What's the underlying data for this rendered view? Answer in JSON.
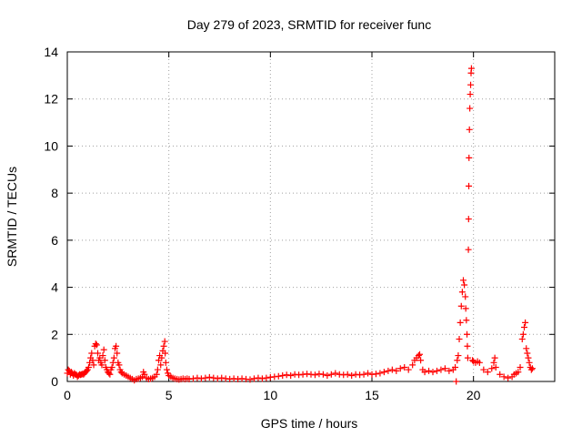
{
  "chart_data": {
    "type": "scatter",
    "title": "Day 279 of 2023, SRMTID for receiver func",
    "xlabel": "GPS time / hours",
    "ylabel": "SRMTID / TECUs",
    "xlim": [
      0,
      24
    ],
    "ylim": [
      0,
      14
    ],
    "x_ticks": [
      0,
      5,
      10,
      15,
      20
    ],
    "y_ticks": [
      0,
      2,
      4,
      6,
      8,
      10,
      12,
      14
    ],
    "grid": true,
    "marker": "+",
    "marker_color": "#ff0000",
    "series": [
      {
        "points": [
          [
            0.0,
            0.35
          ],
          [
            0.05,
            0.5
          ],
          [
            0.1,
            0.45
          ],
          [
            0.15,
            0.3
          ],
          [
            0.2,
            0.4
          ],
          [
            0.25,
            0.35
          ],
          [
            0.3,
            0.25
          ],
          [
            0.35,
            0.35
          ],
          [
            0.4,
            0.3
          ],
          [
            0.45,
            0.28
          ],
          [
            0.5,
            0.2
          ],
          [
            0.55,
            0.25
          ],
          [
            0.6,
            0.3
          ],
          [
            0.65,
            0.28
          ],
          [
            0.7,
            0.3
          ],
          [
            0.75,
            0.32
          ],
          [
            0.8,
            0.3
          ],
          [
            0.85,
            0.35
          ],
          [
            0.9,
            0.4
          ],
          [
            0.95,
            0.45
          ],
          [
            1.0,
            0.5
          ],
          [
            1.05,
            0.6
          ],
          [
            1.1,
            0.8
          ],
          [
            1.15,
            1.0
          ],
          [
            1.2,
            1.2
          ],
          [
            1.25,
            0.9
          ],
          [
            1.3,
            0.7
          ],
          [
            1.35,
            1.5
          ],
          [
            1.4,
            1.6
          ],
          [
            1.45,
            1.55
          ],
          [
            1.5,
            1.2
          ],
          [
            1.55,
            0.9
          ],
          [
            1.6,
            1.0
          ],
          [
            1.65,
            0.8
          ],
          [
            1.7,
            0.7
          ],
          [
            1.75,
            1.1
          ],
          [
            1.8,
            1.35
          ],
          [
            1.85,
            0.9
          ],
          [
            1.9,
            0.6
          ],
          [
            1.95,
            0.5
          ],
          [
            2.0,
            0.4
          ],
          [
            2.05,
            0.35
          ],
          [
            2.1,
            0.3
          ],
          [
            2.15,
            0.5
          ],
          [
            2.2,
            0.6
          ],
          [
            2.25,
            0.8
          ],
          [
            2.3,
            1.0
          ],
          [
            2.35,
            1.4
          ],
          [
            2.4,
            1.5
          ],
          [
            2.45,
            1.2
          ],
          [
            2.5,
            0.8
          ],
          [
            2.55,
            0.7
          ],
          [
            2.6,
            0.5
          ],
          [
            2.65,
            0.4
          ],
          [
            2.7,
            0.35
          ],
          [
            2.8,
            0.3
          ],
          [
            2.9,
            0.25
          ],
          [
            3.0,
            0.2
          ],
          [
            3.1,
            0.15
          ],
          [
            3.2,
            0.1
          ],
          [
            3.3,
            0.05
          ],
          [
            3.4,
            0.1
          ],
          [
            3.5,
            0.12
          ],
          [
            3.6,
            0.15
          ],
          [
            3.7,
            0.2
          ],
          [
            3.75,
            0.4
          ],
          [
            3.8,
            0.3
          ],
          [
            3.9,
            0.15
          ],
          [
            4.0,
            0.1
          ],
          [
            4.1,
            0.12
          ],
          [
            4.2,
            0.15
          ],
          [
            4.3,
            0.2
          ],
          [
            4.4,
            0.3
          ],
          [
            4.45,
            0.5
          ],
          [
            4.5,
            0.9
          ],
          [
            4.55,
            1.1
          ],
          [
            4.6,
            0.7
          ],
          [
            4.65,
            1.0
          ],
          [
            4.7,
            1.3
          ],
          [
            4.75,
            1.5
          ],
          [
            4.8,
            1.7
          ],
          [
            4.82,
            1.2
          ],
          [
            4.85,
            0.8
          ],
          [
            4.9,
            0.5
          ],
          [
            4.95,
            0.35
          ],
          [
            5.0,
            0.25
          ],
          [
            5.1,
            0.2
          ],
          [
            5.2,
            0.15
          ],
          [
            5.3,
            0.12
          ],
          [
            5.4,
            0.1
          ],
          [
            5.5,
            0.08
          ],
          [
            5.6,
            0.1
          ],
          [
            5.7,
            0.12
          ],
          [
            5.8,
            0.1
          ],
          [
            5.9,
            0.12
          ],
          [
            6.0,
            0.1
          ],
          [
            6.2,
            0.12
          ],
          [
            6.4,
            0.15
          ],
          [
            6.6,
            0.12
          ],
          [
            6.8,
            0.15
          ],
          [
            7.0,
            0.18
          ],
          [
            7.2,
            0.15
          ],
          [
            7.4,
            0.12
          ],
          [
            7.6,
            0.15
          ],
          [
            7.8,
            0.12
          ],
          [
            8.0,
            0.1
          ],
          [
            8.2,
            0.12
          ],
          [
            8.4,
            0.1
          ],
          [
            8.6,
            0.12
          ],
          [
            8.8,
            0.1
          ],
          [
            9.0,
            0.08
          ],
          [
            9.2,
            0.12
          ],
          [
            9.4,
            0.15
          ],
          [
            9.6,
            0.12
          ],
          [
            9.8,
            0.15
          ],
          [
            10.0,
            0.18
          ],
          [
            10.2,
            0.2
          ],
          [
            10.4,
            0.22
          ],
          [
            10.6,
            0.25
          ],
          [
            10.8,
            0.28
          ],
          [
            11.0,
            0.25
          ],
          [
            11.2,
            0.3
          ],
          [
            11.4,
            0.28
          ],
          [
            11.6,
            0.3
          ],
          [
            11.8,
            0.32
          ],
          [
            12.0,
            0.3
          ],
          [
            12.2,
            0.28
          ],
          [
            12.4,
            0.32
          ],
          [
            12.6,
            0.3
          ],
          [
            12.8,
            0.25
          ],
          [
            13.0,
            0.3
          ],
          [
            13.2,
            0.35
          ],
          [
            13.4,
            0.3
          ],
          [
            13.6,
            0.28
          ],
          [
            13.8,
            0.3
          ],
          [
            14.0,
            0.25
          ],
          [
            14.2,
            0.3
          ],
          [
            14.4,
            0.28
          ],
          [
            14.6,
            0.3
          ],
          [
            14.8,
            0.35
          ],
          [
            15.0,
            0.3
          ],
          [
            15.2,
            0.32
          ],
          [
            15.4,
            0.35
          ],
          [
            15.6,
            0.4
          ],
          [
            15.8,
            0.45
          ],
          [
            16.0,
            0.5
          ],
          [
            16.2,
            0.45
          ],
          [
            16.4,
            0.55
          ],
          [
            16.6,
            0.6
          ],
          [
            16.8,
            0.5
          ],
          [
            17.0,
            0.7
          ],
          [
            17.1,
            0.9
          ],
          [
            17.2,
            1.0
          ],
          [
            17.3,
            1.1
          ],
          [
            17.35,
            1.15
          ],
          [
            17.4,
            0.9
          ],
          [
            17.5,
            0.5
          ],
          [
            17.6,
            0.4
          ],
          [
            17.8,
            0.45
          ],
          [
            18.0,
            0.4
          ],
          [
            18.2,
            0.45
          ],
          [
            18.4,
            0.5
          ],
          [
            18.6,
            0.55
          ],
          [
            18.8,
            0.45
          ],
          [
            19.0,
            0.5
          ],
          [
            19.1,
            0.6
          ],
          [
            19.15,
            0.0
          ],
          [
            19.2,
            0.9
          ],
          [
            19.25,
            1.1
          ],
          [
            19.3,
            1.8
          ],
          [
            19.35,
            2.5
          ],
          [
            19.4,
            3.2
          ],
          [
            19.45,
            3.8
          ],
          [
            19.5,
            4.3
          ],
          [
            19.55,
            4.1
          ],
          [
            19.6,
            3.6
          ],
          [
            19.62,
            3.1
          ],
          [
            19.65,
            2.6
          ],
          [
            19.68,
            2.0
          ],
          [
            19.7,
            1.5
          ],
          [
            19.72,
            1.0
          ],
          [
            19.75,
            5.6
          ],
          [
            19.76,
            6.9
          ],
          [
            19.77,
            8.3
          ],
          [
            19.78,
            9.5
          ],
          [
            19.8,
            10.7
          ],
          [
            19.82,
            11.6
          ],
          [
            19.84,
            12.2
          ],
          [
            19.86,
            12.6
          ],
          [
            19.88,
            13.1
          ],
          [
            19.9,
            13.3
          ],
          [
            19.95,
            0.9
          ],
          [
            20.0,
            0.85
          ],
          [
            20.1,
            0.8
          ],
          [
            20.2,
            0.85
          ],
          [
            20.3,
            0.8
          ],
          [
            20.5,
            0.5
          ],
          [
            20.7,
            0.4
          ],
          [
            20.9,
            0.55
          ],
          [
            21.0,
            0.8
          ],
          [
            21.05,
            1.0
          ],
          [
            21.1,
            0.6
          ],
          [
            21.3,
            0.3
          ],
          [
            21.5,
            0.2
          ],
          [
            21.7,
            0.15
          ],
          [
            21.9,
            0.2
          ],
          [
            22.0,
            0.3
          ],
          [
            22.1,
            0.35
          ],
          [
            22.2,
            0.4
          ],
          [
            22.3,
            0.6
          ],
          [
            22.4,
            1.8
          ],
          [
            22.45,
            2.0
          ],
          [
            22.5,
            2.3
          ],
          [
            22.55,
            2.5
          ],
          [
            22.6,
            1.4
          ],
          [
            22.65,
            1.2
          ],
          [
            22.7,
            1.0
          ],
          [
            22.75,
            0.8
          ],
          [
            22.8,
            0.6
          ],
          [
            22.85,
            0.5
          ],
          [
            22.9,
            0.55
          ]
        ]
      }
    ]
  }
}
